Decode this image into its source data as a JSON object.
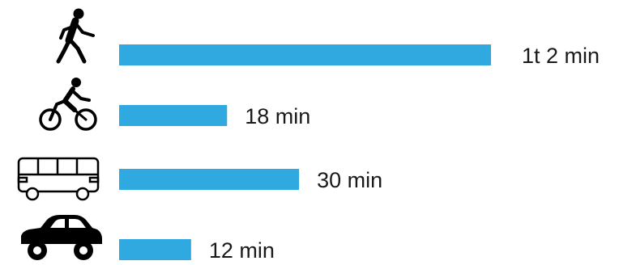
{
  "chart_data": {
    "type": "bar",
    "orientation": "horizontal",
    "bar_color": "#2fa9df",
    "categories": [
      "walk-icon",
      "bicycle-icon",
      "bus-icon",
      "car-icon"
    ],
    "values": [
      62,
      18,
      30,
      12
    ],
    "value_labels": [
      "1t 2 min",
      "18 min",
      "30 min",
      "12 min"
    ],
    "unit": "min",
    "xlim": [
      0,
      62
    ],
    "grid": false,
    "legend": "none"
  }
}
